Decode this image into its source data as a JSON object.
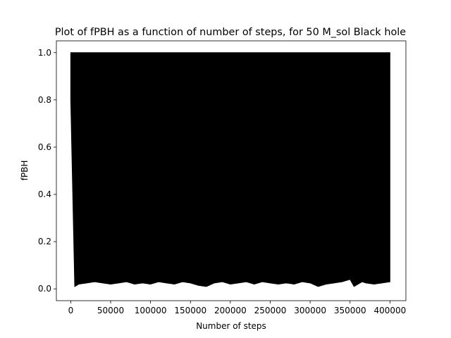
{
  "chart_data": {
    "type": "line",
    "title": "Plot of fPBH as a function of number of steps, for 50 M_sol Black hole",
    "xlabel": "Number of steps",
    "ylabel": "fPBH",
    "xlim": [
      -18000,
      420000
    ],
    "ylim": [
      -0.05,
      1.05
    ],
    "x_ticks": [
      0,
      50000,
      100000,
      150000,
      200000,
      250000,
      300000,
      350000,
      400000
    ],
    "y_ticks": [
      0.0,
      0.2,
      0.4,
      0.6,
      0.8,
      1.0
    ],
    "x_tick_labels": [
      "0",
      "50000",
      "100000",
      "150000",
      "200000",
      "250000",
      "300000",
      "350000",
      "400000"
    ],
    "y_tick_labels": [
      "0.0",
      "0.2",
      "0.4",
      "0.6",
      "0.8",
      "1.0"
    ],
    "grid": false,
    "series": [
      {
        "color": "#000000",
        "x_range": [
          0,
          400000
        ],
        "upper_envelope": 1.0,
        "lower_envelope": {
          "x": [
            0,
            5000,
            10000,
            20000,
            30000,
            40000,
            50000,
            60000,
            70000,
            80000,
            90000,
            100000,
            110000,
            120000,
            130000,
            140000,
            150000,
            160000,
            170000,
            180000,
            190000,
            200000,
            210000,
            220000,
            230000,
            240000,
            250000,
            260000,
            270000,
            280000,
            290000,
            300000,
            310000,
            320000,
            330000,
            340000,
            350000,
            355000,
            360000,
            365000,
            370000,
            380000,
            390000,
            400000
          ],
          "y": [
            0.8,
            0.01,
            0.02,
            0.025,
            0.03,
            0.025,
            0.02,
            0.025,
            0.03,
            0.02,
            0.025,
            0.02,
            0.03,
            0.025,
            0.02,
            0.03,
            0.025,
            0.015,
            0.01,
            0.025,
            0.03,
            0.02,
            0.025,
            0.03,
            0.02,
            0.03,
            0.025,
            0.02,
            0.025,
            0.02,
            0.03,
            0.025,
            0.01,
            0.02,
            0.025,
            0.03,
            0.04,
            0.01,
            0.02,
            0.03,
            0.025,
            0.02,
            0.025,
            0.03
          ]
        }
      }
    ]
  }
}
